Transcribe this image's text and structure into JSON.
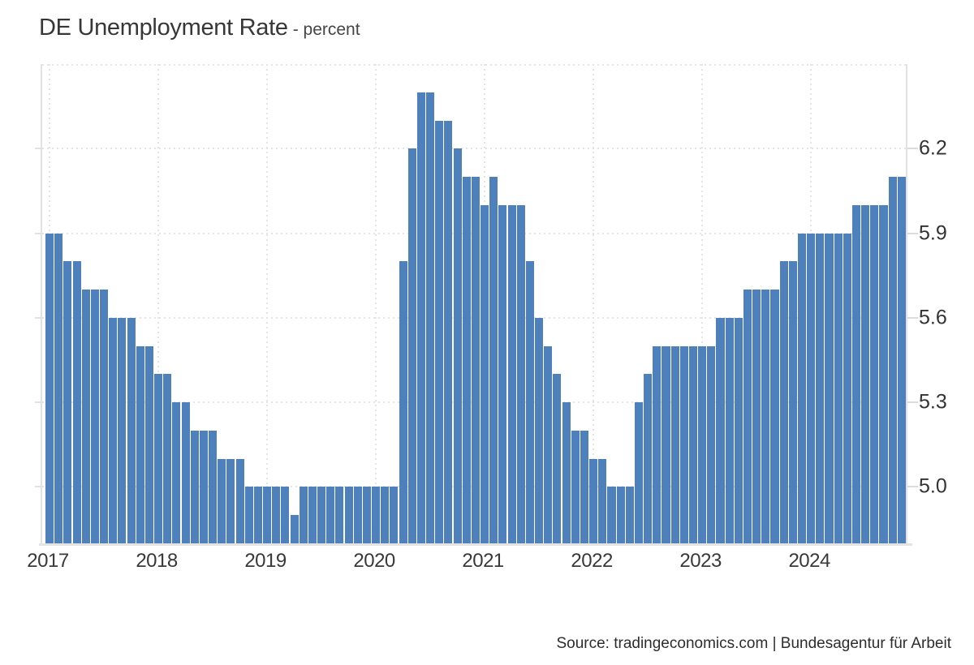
{
  "header": {
    "title": "DE Unemployment Rate",
    "subtitle": "- percent"
  },
  "source": {
    "text": "Source: tradingeconomics.com | Bundesagentur für Arbeit"
  },
  "colors": {
    "bar": "#4e80bc",
    "grid": "#e4e4e4",
    "axis_border": "#e2e2e2",
    "tick": "#dcdcdc",
    "label_text": "#333333"
  },
  "y_axis": {
    "tick_labels": [
      "6.2",
      "5.9",
      "5.6",
      "5.3",
      "5.0"
    ],
    "tick_values": [
      6.2,
      5.9,
      5.6,
      5.3,
      5.0
    ]
  },
  "x_axis": {
    "tick_labels": [
      "2017",
      "2018",
      "2019",
      "2020",
      "2021",
      "2022",
      "2023",
      "2024"
    ]
  },
  "chart_data": {
    "type": "bar",
    "title": "DE Unemployment Rate",
    "unit": "percent",
    "frequency": "monthly",
    "start_month": "2017-01",
    "end_month": "2024-11",
    "ylim": [
      4.8,
      6.5
    ],
    "grid": true,
    "legend": "none",
    "y_tick_values": [
      5.0,
      5.3,
      5.6,
      5.9,
      6.2
    ],
    "categories_years": [
      "2017",
      "2018",
      "2019",
      "2020",
      "2021",
      "2022",
      "2023",
      "2024"
    ],
    "series": [
      {
        "name": "DE Unemployment Rate (percent)",
        "values_by_year": {
          "2017": [
            5.9,
            5.9,
            5.8,
            5.8,
            5.7,
            5.7,
            5.7,
            5.6,
            5.6,
            5.6,
            5.5,
            5.5
          ],
          "2018": [
            5.4,
            5.4,
            5.3,
            5.3,
            5.2,
            5.2,
            5.2,
            5.1,
            5.1,
            5.1,
            5.0,
            5.0
          ],
          "2019": [
            5.0,
            5.0,
            5.0,
            4.9,
            5.0,
            5.0,
            5.0,
            5.0,
            5.0,
            5.0,
            5.0,
            5.0
          ],
          "2020": [
            5.0,
            5.0,
            5.0,
            5.8,
            6.2,
            6.4,
            6.4,
            6.3,
            6.3,
            6.2,
            6.1,
            6.1
          ],
          "2021": [
            6.0,
            6.1,
            6.0,
            6.0,
            6.0,
            5.8,
            5.6,
            5.5,
            5.4,
            5.3,
            5.2,
            5.2
          ],
          "2022": [
            5.1,
            5.1,
            5.0,
            5.0,
            5.0,
            5.3,
            5.4,
            5.5,
            5.5,
            5.5,
            5.5,
            5.5
          ],
          "2023": [
            5.5,
            5.5,
            5.6,
            5.6,
            5.6,
            5.7,
            5.7,
            5.7,
            5.7,
            5.8,
            5.8,
            5.9
          ],
          "2024": [
            5.9,
            5.9,
            5.9,
            5.9,
            5.9,
            6.0,
            6.0,
            6.0,
            6.0,
            6.1,
            6.1
          ]
        }
      }
    ]
  }
}
